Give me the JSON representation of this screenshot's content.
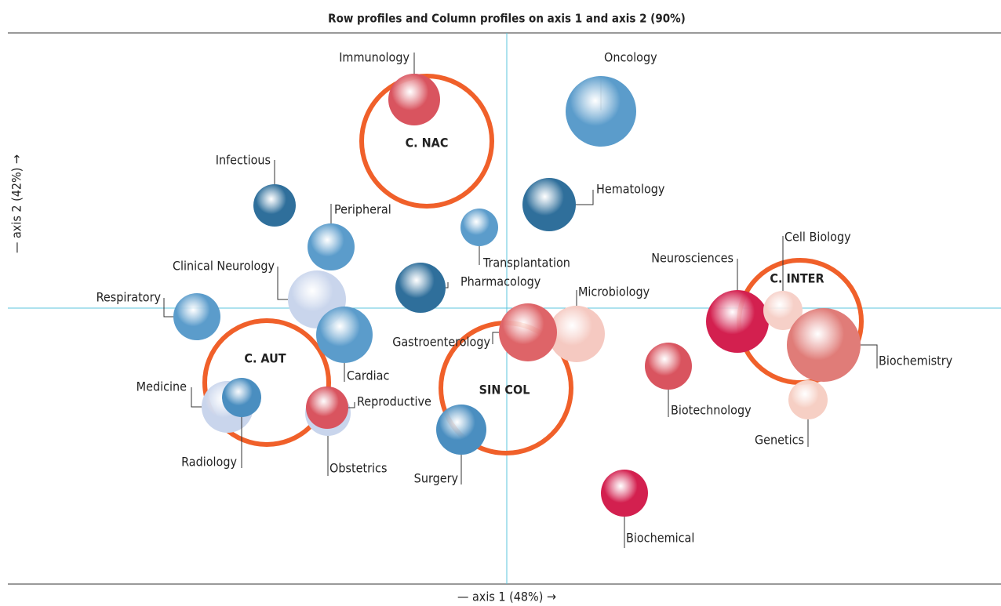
{
  "chart_data": {
    "type": "bubble",
    "title": "Row profiles and Column profiles on axis 1 and axis 2 (90%)",
    "x_label": "— axis 1 (48%) →",
    "y_label": "— axis 2 (42%) →",
    "xlim": [
      -6.36,
      6.3
    ],
    "ylim": [
      -3.52,
      3.51
    ],
    "points": {
      "labels": [
        "Oncology",
        "Hematology",
        "Transplantation",
        "Pharmacology",
        "Infectious",
        "Peripheral",
        "Clinical Neurology",
        "Respiratory",
        "Cardiac",
        "Medicine",
        "Radiology",
        "Surgery",
        "Immunology",
        "Microbiology",
        "Gastroenterology",
        "Obstetrics",
        "Reproductive",
        "Neurosciences",
        "Cell Biology",
        "Biochemistry",
        "Genetics",
        "Biotechnology",
        "Biochemical"
      ],
      "x": [
        1.2,
        0.54,
        -0.35,
        -1.1,
        -2.96,
        -2.24,
        -2.42,
        -3.95,
        -2.07,
        -3.56,
        -3.38,
        -0.58,
        -1.18,
        0.89,
        0.27,
        -2.28,
        -2.29,
        2.94,
        3.52,
        4.04,
        3.84,
        2.06,
        1.5
      ],
      "y": [
        2.51,
        1.32,
        1.03,
        0.26,
        1.31,
        0.78,
        0.11,
        -0.11,
        -0.34,
        -1.26,
        -1.14,
        -1.55,
        2.66,
        -0.33,
        -0.31,
        -1.34,
        -1.27,
        -0.17,
        -0.03,
        -0.47,
        -1.17,
        -0.74,
        -2.36
      ],
      "sizes": [
        0.45,
        0.34,
        0.24,
        0.32,
        0.27,
        0.3,
        0.37,
        0.3,
        0.36,
        0.33,
        0.25,
        0.32,
        0.33,
        0.36,
        0.37,
        0.29,
        0.27,
        0.4,
        0.25,
        0.47,
        0.25,
        0.3,
        0.3
      ],
      "colors": [
        "#5b9ccb",
        "#2f6f9b",
        "#5b9ccb",
        "#2f6f9b",
        "#2f6f9b",
        "#5b9ccb",
        "#c9d5ec",
        "#5b9ccb",
        "#5b9ccb",
        "#c9d5ec",
        "#4a8ec0",
        "#4a8ec0",
        "#d9545f",
        "#f5c9c1",
        "#de6468",
        "#c9d5ec",
        "#d9545f",
        "#d3204f",
        "#f6d0c8",
        "#e07c78",
        "#f6cfc4",
        "#d9545f",
        "#d3204f"
      ]
    },
    "column_points": {
      "labels": [
        "C. NAC",
        "C. AUT",
        "SIN COL",
        "C. INTER"
      ],
      "x": [
        -1.02,
        -3.06,
        -0.01,
        3.74
      ],
      "y": [
        2.13,
        -0.95,
        -1.02,
        -0.17
      ],
      "sizes": [
        0.83,
        0.79,
        0.83,
        0.78
      ],
      "color": "#f0602a"
    },
    "axis_color": "#5bc4dc"
  }
}
